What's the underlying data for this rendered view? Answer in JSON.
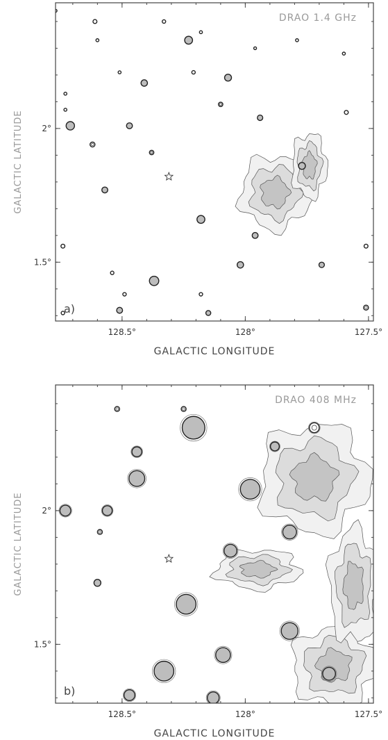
{
  "chart_data": [
    {
      "type": "contour",
      "panel_label": "a)",
      "title": "DRAO 1.4 GHz",
      "xlabel": "GALACTIC LONGITUDE",
      "ylabel": "GALACTIC LATITUDE",
      "xlim": [
        128.77,
        127.48
      ],
      "ylim": [
        1.28,
        2.47
      ],
      "x_ticks": [
        128.5,
        128.0,
        127.5
      ],
      "x_tick_labels": [
        "128.5°",
        "128°",
        "127.5°"
      ],
      "y_ticks": [
        2.0,
        1.5
      ],
      "y_tick_labels": [
        "2°",
        "1.5°"
      ],
      "star": {
        "l": 128.31,
        "b": 1.82
      },
      "sources": [
        {
          "l": 128.77,
          "b": 2.44,
          "r": 0.006,
          "filled": false
        },
        {
          "l": 128.61,
          "b": 2.4,
          "r": 0.008,
          "filled": false
        },
        {
          "l": 128.33,
          "b": 2.4,
          "r": 0.007,
          "filled": false
        },
        {
          "l": 128.6,
          "b": 2.33,
          "r": 0.006,
          "filled": false
        },
        {
          "l": 128.23,
          "b": 2.33,
          "r": 0.016,
          "filled": true
        },
        {
          "l": 128.18,
          "b": 2.36,
          "r": 0.006,
          "filled": false
        },
        {
          "l": 127.96,
          "b": 2.3,
          "r": 0.005,
          "filled": false
        },
        {
          "l": 127.79,
          "b": 2.33,
          "r": 0.006,
          "filled": false
        },
        {
          "l": 127.6,
          "b": 2.28,
          "r": 0.006,
          "filled": false
        },
        {
          "l": 128.07,
          "b": 2.19,
          "r": 0.014,
          "filled": true
        },
        {
          "l": 128.51,
          "b": 2.21,
          "r": 0.006,
          "filled": false
        },
        {
          "l": 128.41,
          "b": 2.17,
          "r": 0.013,
          "filled": true
        },
        {
          "l": 128.21,
          "b": 2.21,
          "r": 0.007,
          "filled": false
        },
        {
          "l": 128.73,
          "b": 2.13,
          "r": 0.006,
          "filled": false
        },
        {
          "l": 128.1,
          "b": 2.09,
          "r": 0.009,
          "filled": false
        },
        {
          "l": 128.73,
          "b": 2.07,
          "r": 0.006,
          "filled": false
        },
        {
          "l": 127.94,
          "b": 2.04,
          "r": 0.011,
          "filled": true
        },
        {
          "l": 127.59,
          "b": 2.06,
          "r": 0.008,
          "filled": false
        },
        {
          "l": 128.71,
          "b": 2.01,
          "r": 0.017,
          "filled": true
        },
        {
          "l": 128.47,
          "b": 2.01,
          "r": 0.012,
          "filled": true
        },
        {
          "l": 128.62,
          "b": 1.94,
          "r": 0.01,
          "filled": false
        },
        {
          "l": 128.38,
          "b": 1.91,
          "r": 0.009,
          "filled": false
        },
        {
          "l": 127.77,
          "b": 1.86,
          "r": 0.014,
          "filled": true
        },
        {
          "l": 128.57,
          "b": 1.77,
          "r": 0.012,
          "filled": true
        },
        {
          "l": 128.18,
          "b": 1.66,
          "r": 0.016,
          "filled": true
        },
        {
          "l": 127.96,
          "b": 1.6,
          "r": 0.012,
          "filled": true
        },
        {
          "l": 127.51,
          "b": 1.56,
          "r": 0.008,
          "filled": false
        },
        {
          "l": 128.74,
          "b": 1.56,
          "r": 0.008,
          "filled": false
        },
        {
          "l": 128.02,
          "b": 1.49,
          "r": 0.013,
          "filled": true
        },
        {
          "l": 127.69,
          "b": 1.49,
          "r": 0.011,
          "filled": true
        },
        {
          "l": 128.54,
          "b": 1.46,
          "r": 0.007,
          "filled": false
        },
        {
          "l": 128.37,
          "b": 1.43,
          "r": 0.019,
          "filled": true
        },
        {
          "l": 128.49,
          "b": 1.38,
          "r": 0.007,
          "filled": false
        },
        {
          "l": 128.18,
          "b": 1.38,
          "r": 0.007,
          "filled": false
        },
        {
          "l": 128.74,
          "b": 1.31,
          "r": 0.007,
          "filled": false
        },
        {
          "l": 128.51,
          "b": 1.32,
          "r": 0.012,
          "filled": true
        },
        {
          "l": 128.15,
          "b": 1.31,
          "r": 0.01,
          "filled": true
        },
        {
          "l": 127.51,
          "b": 1.33,
          "r": 0.01,
          "filled": false
        }
      ],
      "diffuse": [
        {
          "l": 127.88,
          "b": 1.76,
          "rl": 0.14,
          "rb": 0.15
        },
        {
          "l": 127.74,
          "b": 1.86,
          "rl": 0.07,
          "rb": 0.13
        }
      ]
    },
    {
      "type": "contour",
      "panel_label": "b)",
      "title": "DRAO 408 MHz",
      "xlabel": "GALACTIC LONGITUDE",
      "ylabel": "GALACTIC LATITUDE",
      "xlim": [
        128.77,
        127.48
      ],
      "ylim": [
        1.28,
        2.47
      ],
      "x_ticks": [
        128.5,
        128.0,
        127.5
      ],
      "x_tick_labels": [
        "128.5°",
        "128°",
        "127.5°"
      ],
      "y_ticks": [
        2.0,
        1.5
      ],
      "y_tick_labels": [
        "2°",
        "1.5°"
      ],
      "star": {
        "l": 128.31,
        "b": 1.82
      },
      "sources": [
        {
          "l": 128.52,
          "b": 2.38,
          "r": 0.01,
          "filled": false
        },
        {
          "l": 128.25,
          "b": 2.38,
          "r": 0.01,
          "filled": false
        },
        {
          "l": 128.21,
          "b": 2.31,
          "r": 0.046,
          "filled": true
        },
        {
          "l": 128.44,
          "b": 2.22,
          "r": 0.02,
          "filled": true
        },
        {
          "l": 128.44,
          "b": 2.12,
          "r": 0.032,
          "filled": true
        },
        {
          "l": 127.88,
          "b": 2.24,
          "r": 0.018,
          "filled": true
        },
        {
          "l": 127.72,
          "b": 2.31,
          "r": 0.02,
          "filled": false
        },
        {
          "l": 127.98,
          "b": 2.08,
          "r": 0.04,
          "filled": true
        },
        {
          "l": 128.73,
          "b": 2.0,
          "r": 0.022,
          "filled": true
        },
        {
          "l": 128.56,
          "b": 2.0,
          "r": 0.02,
          "filled": true
        },
        {
          "l": 128.59,
          "b": 1.92,
          "r": 0.01,
          "filled": false
        },
        {
          "l": 128.6,
          "b": 1.73,
          "r": 0.014,
          "filled": true
        },
        {
          "l": 128.24,
          "b": 1.65,
          "r": 0.04,
          "filled": true
        },
        {
          "l": 127.82,
          "b": 1.92,
          "r": 0.028,
          "filled": true
        },
        {
          "l": 128.06,
          "b": 1.85,
          "r": 0.026,
          "filled": true
        },
        {
          "l": 128.33,
          "b": 1.4,
          "r": 0.04,
          "filled": true
        },
        {
          "l": 127.82,
          "b": 1.55,
          "r": 0.034,
          "filled": true
        },
        {
          "l": 128.09,
          "b": 1.46,
          "r": 0.03,
          "filled": true
        },
        {
          "l": 127.66,
          "b": 1.39,
          "r": 0.026,
          "filled": true
        },
        {
          "l": 128.47,
          "b": 1.31,
          "r": 0.022,
          "filled": true
        },
        {
          "l": 128.13,
          "b": 1.3,
          "r": 0.024,
          "filled": true
        }
      ],
      "diffuse": [
        {
          "l": 127.95,
          "b": 1.78,
          "rl": 0.17,
          "rb": 0.08
        },
        {
          "l": 127.72,
          "b": 2.12,
          "rl": 0.22,
          "rb": 0.22
        },
        {
          "l": 127.64,
          "b": 1.42,
          "rl": 0.17,
          "rb": 0.16
        },
        {
          "l": 127.56,
          "b": 1.72,
          "rl": 0.1,
          "rb": 0.23
        }
      ]
    }
  ]
}
